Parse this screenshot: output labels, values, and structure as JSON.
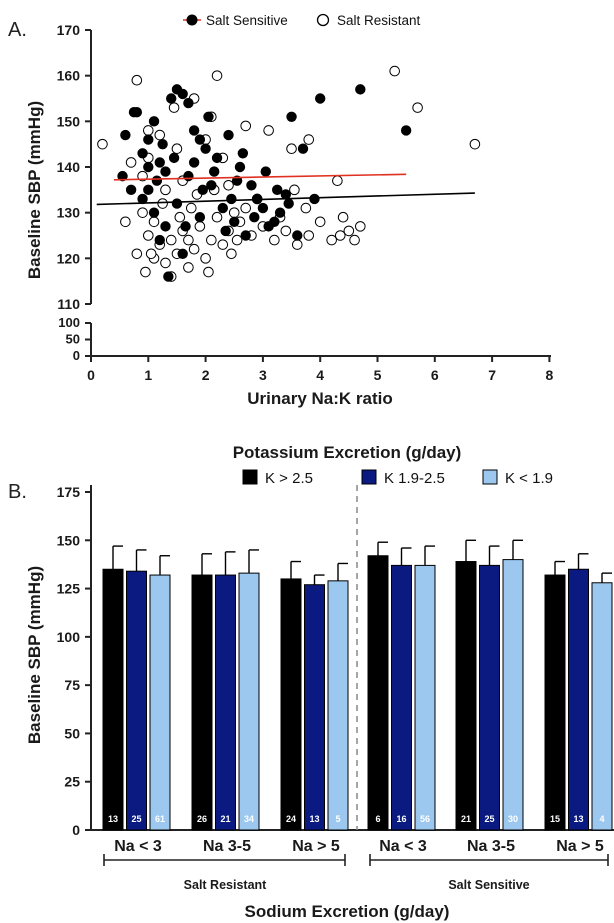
{
  "panel_a": {
    "letter": "A.",
    "legend": [
      {
        "label": "Salt Sensitive",
        "marker": "filled"
      },
      {
        "label": "Salt Resistant",
        "marker": "open"
      }
    ],
    "xlabel": "Urinary Na:K ratio",
    "ylabel": "Baseline SBP (mmHg)",
    "x_ticks": [
      "0",
      "1",
      "2",
      "3",
      "4",
      "5",
      "6",
      "7",
      "8"
    ],
    "y_ticks_upper": [
      "110",
      "120",
      "130",
      "140",
      "150",
      "160",
      "170"
    ],
    "y_ticks_lower": [
      "0",
      "50",
      "100"
    ]
  },
  "panel_b": {
    "letter": "B.",
    "title": "Potassium Excretion (g/day)",
    "legend": [
      {
        "label": "K > 2.5",
        "color": "#000000"
      },
      {
        "label": "K 1.9-2.5",
        "color": "#0a1a80"
      },
      {
        "label": "K < 1.9",
        "color": "#9cc8f0"
      }
    ],
    "ylabel": "Baseline SBP (mmHg)",
    "y_ticks": [
      "0",
      "25",
      "50",
      "75",
      "100",
      "125",
      "150",
      "175"
    ],
    "group_labels": [
      "Na < 3",
      "Na 3-5",
      "Na > 5",
      "Na < 3",
      "Na 3-5",
      "Na > 5"
    ],
    "bracket_labels": [
      "Salt Resistant",
      "Salt Sensitive"
    ],
    "xlabel": "Sodium Excretion (g/day)"
  },
  "chart_data": [
    {
      "type": "scatter",
      "xlabel": "Urinary Na:K ratio",
      "ylabel": "Baseline SBP (mmHg)",
      "xlim": [
        0,
        8
      ],
      "ylim": [
        0,
        170
      ],
      "y_axis_break": [
        100,
        110
      ],
      "series": [
        {
          "name": "Salt Sensitive",
          "marker": "filled",
          "regression_line": {
            "x": [
              0.4,
              5.5
            ],
            "y": [
              137.2,
              138.4
            ],
            "color": "#e03020"
          },
          "points": [
            [
              0.7,
              135
            ],
            [
              0.75,
              152
            ],
            [
              0.8,
              152
            ],
            [
              0.6,
              147
            ],
            [
              0.9,
              143
            ],
            [
              1.0,
              146
            ],
            [
              1.1,
              150
            ],
            [
              1.2,
              141
            ],
            [
              1.3,
              139
            ],
            [
              1.4,
              155
            ],
            [
              1.5,
              157
            ],
            [
              1.6,
              156
            ],
            [
              1.7,
              154
            ],
            [
              1.8,
              148
            ],
            [
              1.9,
              146
            ],
            [
              2.0,
              144
            ],
            [
              2.2,
              142
            ],
            [
              2.4,
              147
            ],
            [
              2.6,
              140
            ],
            [
              2.8,
              136
            ],
            [
              3.0,
              131
            ],
            [
              3.2,
              128
            ],
            [
              3.4,
              134
            ],
            [
              3.5,
              151
            ],
            [
              3.7,
              144
            ],
            [
              4.0,
              155
            ],
            [
              4.7,
              157
            ],
            [
              5.5,
              148
            ],
            [
              1.0,
              135
            ],
            [
              1.1,
              130
            ],
            [
              1.2,
              124
            ],
            [
              1.3,
              127
            ],
            [
              1.5,
              132
            ],
            [
              1.7,
              138
            ],
            [
              1.9,
              129
            ],
            [
              2.1,
              136
            ],
            [
              2.3,
              131
            ],
            [
              2.5,
              128
            ],
            [
              2.7,
              125
            ],
            [
              2.9,
              133
            ],
            [
              3.1,
              127
            ],
            [
              3.3,
              130
            ],
            [
              3.6,
              125
            ],
            [
              1.0,
              140
            ],
            [
              1.25,
              145
            ],
            [
              0.9,
              133
            ],
            [
              1.35,
              116
            ],
            [
              1.6,
              121
            ],
            [
              1.8,
              141
            ],
            [
              2.05,
              151
            ],
            [
              2.15,
              139
            ],
            [
              2.35,
              126
            ],
            [
              2.55,
              137
            ],
            [
              2.65,
              143
            ],
            [
              2.85,
              129
            ],
            [
              3.05,
              139
            ],
            [
              3.25,
              135
            ],
            [
              3.45,
              132
            ],
            [
              3.9,
              133
            ],
            [
              0.55,
              138
            ],
            [
              1.15,
              137
            ],
            [
              1.45,
              142
            ],
            [
              1.65,
              127
            ],
            [
              1.95,
              135
            ],
            [
              2.45,
              133
            ]
          ]
        },
        {
          "name": "Salt Resistant",
          "marker": "open",
          "regression_line": {
            "x": [
              0.1,
              6.7
            ],
            "y": [
              131.8,
              134.3
            ],
            "color": "#000000"
          },
          "points": [
            [
              0.2,
              145
            ],
            [
              0.8,
              159
            ],
            [
              0.7,
              141
            ],
            [
              0.9,
              130
            ],
            [
              1.0,
              125
            ],
            [
              1.1,
              120
            ],
            [
              1.2,
              123
            ],
            [
              1.3,
              119
            ],
            [
              1.4,
              124
            ],
            [
              1.5,
              121
            ],
            [
              1.6,
              126
            ],
            [
              1.7,
              118
            ],
            [
              1.8,
              122
            ],
            [
              1.9,
              127
            ],
            [
              2.0,
              120
            ],
            [
              2.1,
              124
            ],
            [
              2.2,
              129
            ],
            [
              2.3,
              123
            ],
            [
              2.4,
              126
            ],
            [
              2.5,
              130
            ],
            [
              2.6,
              128
            ],
            [
              2.7,
              131
            ],
            [
              2.8,
              125
            ],
            [
              3.0,
              127
            ],
            [
              3.2,
              124
            ],
            [
              3.4,
              126
            ],
            [
              3.6,
              123
            ],
            [
              3.8,
              125
            ],
            [
              4.0,
              128
            ],
            [
              4.2,
              124
            ],
            [
              4.4,
              129
            ],
            [
              4.5,
              126
            ],
            [
              4.6,
              124
            ],
            [
              4.7,
              127
            ],
            [
              2.2,
              160
            ],
            [
              2.1,
              151
            ],
            [
              1.8,
              155
            ],
            [
              3.1,
              148
            ],
            [
              3.5,
              144
            ],
            [
              3.8,
              146
            ],
            [
              4.3,
              137
            ],
            [
              5.3,
              161
            ],
            [
              5.7,
              153
            ],
            [
              6.7,
              145
            ],
            [
              0.9,
              138
            ],
            [
              1.0,
              142
            ],
            [
              1.2,
              147
            ],
            [
              1.3,
              135
            ],
            [
              1.5,
              144
            ],
            [
              1.6,
              137
            ],
            [
              2.0,
              146
            ],
            [
              2.3,
              142
            ],
            [
              2.7,
              149
            ],
            [
              0.95,
              117
            ],
            [
              1.1,
              128
            ],
            [
              1.4,
              116
            ],
            [
              1.75,
              131
            ],
            [
              2.45,
              121
            ],
            [
              2.9,
              133
            ],
            [
              3.3,
              129
            ],
            [
              3.55,
              135
            ],
            [
              1.05,
              121
            ],
            [
              1.55,
              129
            ],
            [
              1.85,
              134
            ],
            [
              2.15,
              135
            ],
            [
              2.55,
              124
            ],
            [
              2.05,
              117
            ],
            [
              3.75,
              131
            ],
            [
              4.35,
              125
            ],
            [
              0.8,
              121
            ],
            [
              0.6,
              128
            ],
            [
              1.25,
              132
            ],
            [
              1.7,
              124
            ],
            [
              2.4,
              136
            ],
            [
              1.0,
              148
            ],
            [
              1.45,
              153
            ]
          ]
        }
      ]
    },
    {
      "type": "bar",
      "title": "Potassium Excretion (g/day)",
      "xlabel": "Sodium Excretion (g/day)",
      "ylabel": "Baseline SBP (mmHg)",
      "ylim": [
        0,
        175
      ],
      "categories": [
        "Na < 3",
        "Na 3-5",
        "Na > 5",
        "Na < 3",
        "Na 3-5",
        "Na > 5"
      ],
      "group_labels": [
        "Salt Resistant",
        "Salt Resistant",
        "Salt Resistant",
        "Salt Sensitive",
        "Salt Sensitive",
        "Salt Sensitive"
      ],
      "series": [
        {
          "name": "K > 2.5",
          "color": "#000000",
          "values": [
            135,
            132,
            130,
            142,
            139,
            132
          ],
          "error": [
            12,
            11,
            9,
            7,
            11,
            7
          ],
          "n": [
            "13",
            "26",
            "24",
            "6",
            "21",
            "15"
          ]
        },
        {
          "name": "K 1.9-2.5",
          "color": "#0a1a80",
          "values": [
            134,
            132,
            127,
            137,
            137,
            135
          ],
          "error": [
            11,
            12,
            5,
            9,
            10,
            8
          ],
          "n": [
            "25",
            "21",
            "13",
            "16",
            "25",
            "13"
          ]
        },
        {
          "name": "K < 1.9",
          "color": "#9cc8f0",
          "values": [
            132,
            133,
            129,
            137,
            140,
            128
          ],
          "error": [
            10,
            12,
            9,
            10,
            10,
            5
          ],
          "n": [
            "61",
            "34",
            "5",
            "56",
            "30",
            "4"
          ]
        }
      ]
    }
  ]
}
